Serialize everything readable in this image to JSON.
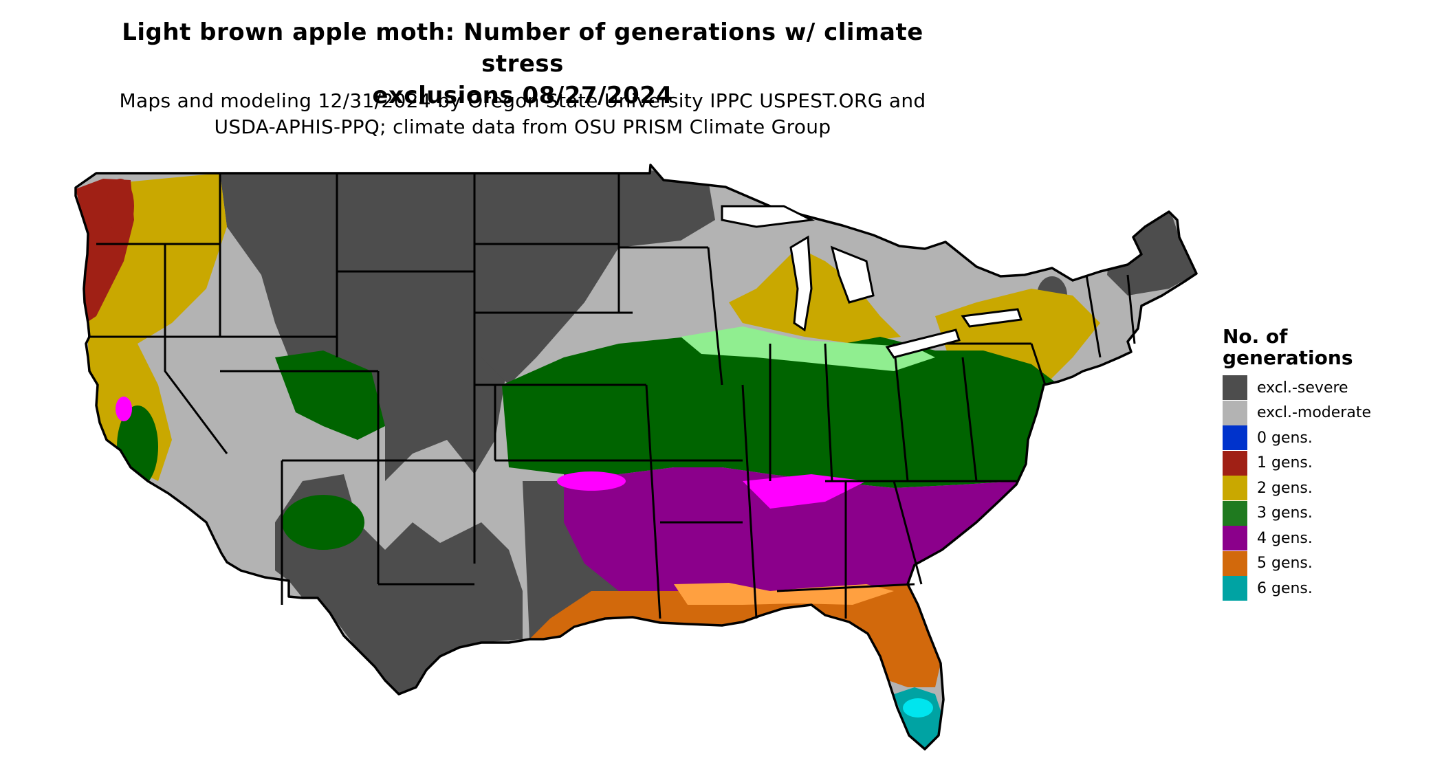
{
  "title_line1": "Light brown apple moth: Number of generations w/ climate stress",
  "title_line2": "exclusions 08/27/2024",
  "subtitle_line1": "Maps and modeling 12/31/2024 by Oregon State University IPPC USPEST.ORG and",
  "subtitle_line2": "USDA-APHIS-PPQ; climate data from OSU PRISM Climate Group",
  "legend": {
    "title_line1": "No. of",
    "title_line2": "generations",
    "items": [
      {
        "label": "excl.-severe",
        "color": "#4d4d4d"
      },
      {
        "label": "excl.-moderate",
        "color": "#b3b3b3"
      },
      {
        "label": "0 gens.",
        "color": "#0033cc"
      },
      {
        "label": "1 gens.",
        "color": "#a02015"
      },
      {
        "label": "2 gens.",
        "color": "#c9a800"
      },
      {
        "label": "3 gens.",
        "color": "#1f7a1f"
      },
      {
        "label": "4 gens.",
        "color": "#8b008b"
      },
      {
        "label": "5 gens.",
        "color": "#d2690c"
      },
      {
        "label": "6 gens.",
        "color": "#00a3a3"
      }
    ]
  },
  "map_colors": {
    "severe": "#4d4d4d",
    "moderate": "#b3b3b3",
    "one_gen": "#a02015",
    "two_gen": "#c9a800",
    "three_gen": "#006400",
    "three_gen_light": "#90ee90",
    "four_gen": "#8b008b",
    "four_gen_light": "#ff00ff",
    "five_gen": "#d2690c",
    "five_gen_light": "#ffa040",
    "six_gen": "#00a3a3",
    "six_gen_light": "#00e5ee"
  }
}
